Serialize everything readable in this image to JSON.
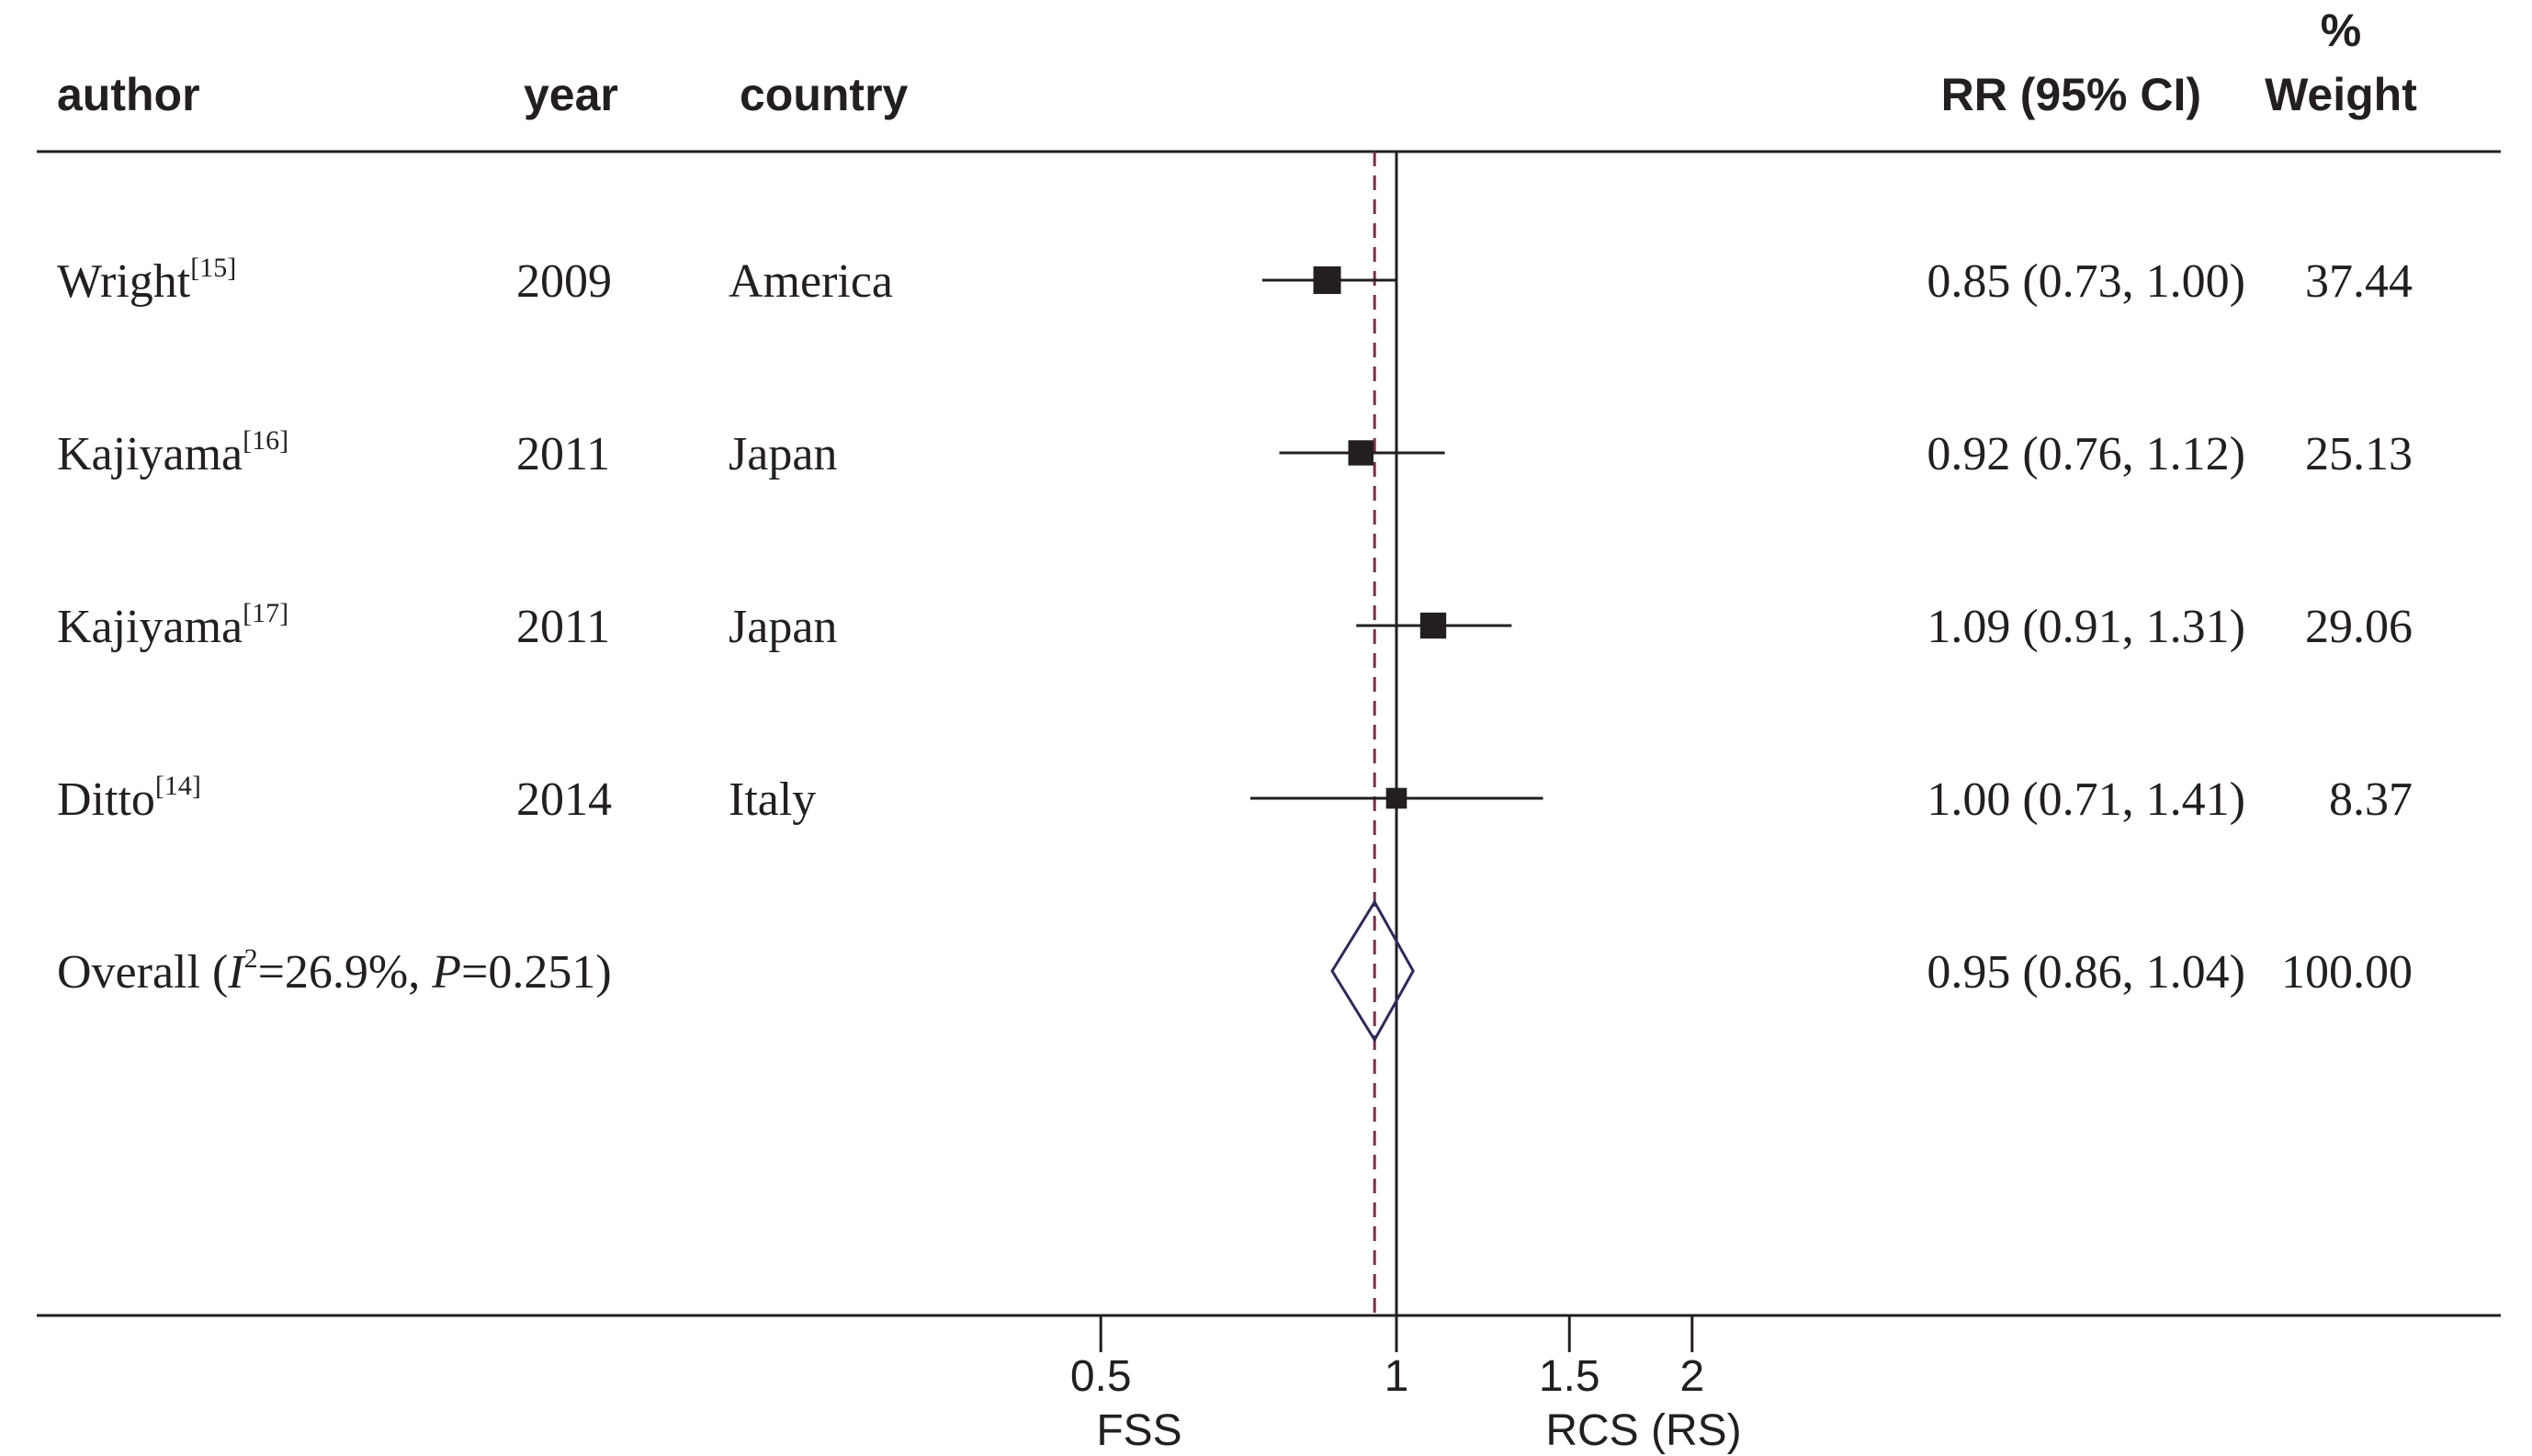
{
  "chart_data": {
    "type": "forest",
    "scale": "log",
    "xlim": [
      0.29,
      3.6
    ],
    "null_line": 1,
    "overall_line": 0.95,
    "columns": {
      "author": "author",
      "year": "year",
      "country": "country",
      "rr": "RR (95% CI)",
      "weight_line1": "%",
      "weight_line2": "Weight"
    },
    "studies": [
      {
        "author": "Wright",
        "ref": "[15]",
        "year": "2009",
        "country": "America",
        "rr": 0.85,
        "lower": 0.73,
        "upper": 1.0,
        "rr_text": "0.85 (0.73, 1.00)",
        "weight": 37.44,
        "weight_text": "37.44"
      },
      {
        "author": "Kajiyama",
        "ref": "[16]",
        "year": "2011",
        "country": "Japan",
        "rr": 0.92,
        "lower": 0.76,
        "upper": 1.12,
        "rr_text": "0.92 (0.76, 1.12)",
        "weight": 25.13,
        "weight_text": "25.13"
      },
      {
        "author": "Kajiyama",
        "ref": "[17]",
        "year": "2011",
        "country": "Japan",
        "rr": 1.09,
        "lower": 0.91,
        "upper": 1.31,
        "rr_text": "1.09 (0.91, 1.31)",
        "weight": 29.06,
        "weight_text": "29.06"
      },
      {
        "author": "Ditto",
        "ref": "[14]",
        "year": "2014",
        "country": "Italy",
        "rr": 1.0,
        "lower": 0.71,
        "upper": 1.41,
        "rr_text": "1.00 (0.71, 1.41)",
        "weight": 8.37,
        "weight_text": "8.37"
      }
    ],
    "overall": {
      "label": "Overall",
      "i2_label": "I",
      "i2_exp": "2",
      "i2_value": "=26.9%, ",
      "p_label": "P",
      "p_value": "=0.251)",
      "open_paren": "(",
      "rr": 0.95,
      "lower": 0.86,
      "upper": 1.04,
      "rr_text": "0.95 (0.86, 1.04)",
      "weight_text": "100.00"
    },
    "x_ticks": [
      {
        "value": 0.5,
        "label": "0.5"
      },
      {
        "value": 1,
        "label": "1"
      },
      {
        "value": 1.5,
        "label": "1.5"
      },
      {
        "value": 2,
        "label": "2"
      }
    ],
    "favours_left": "FSS",
    "favours_right": "RCS (RS)",
    "colors": {
      "ink": "#231f20",
      "dashed_line": "#7a2e4a",
      "diamond": "#2e2a5a"
    }
  }
}
